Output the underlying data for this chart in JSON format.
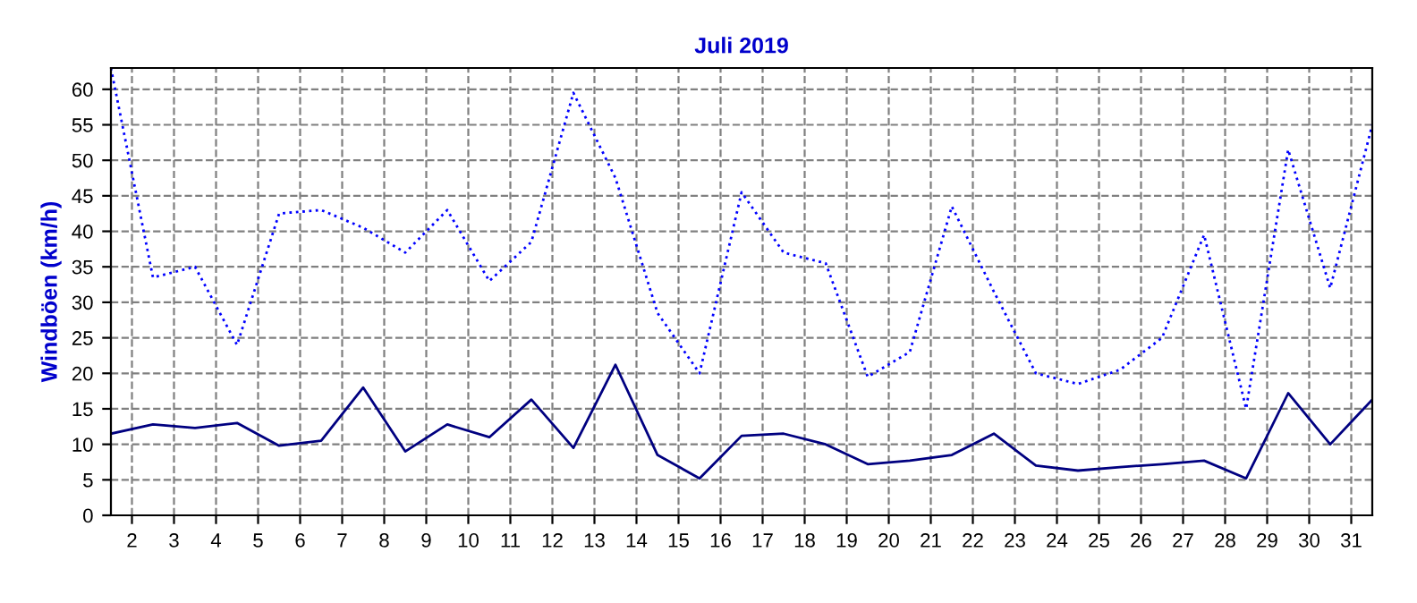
{
  "chart_data": {
    "type": "line",
    "title": "Juli 2019",
    "ylabel": "Windböen (km/h)",
    "x": [
      1.5,
      2.5,
      3.5,
      4.5,
      5.5,
      6.5,
      7.5,
      8.5,
      9.5,
      10.5,
      11.5,
      12.5,
      13.5,
      14.5,
      15.5,
      16.5,
      17.5,
      18.5,
      19.5,
      20.5,
      21.5,
      22.5,
      23.5,
      24.5,
      25.5,
      26.5,
      27.5,
      28.5,
      29.5,
      30.5,
      31.5
    ],
    "series": [
      {
        "color": "#0000ff",
        "line_style": "dotted",
        "values": [
          63,
          33.5,
          35,
          24,
          42.5,
          43,
          40.5,
          37,
          43,
          33,
          38.5,
          59.5,
          47.5,
          28.5,
          20,
          45.5,
          37,
          35.5,
          19.5,
          23,
          43.5,
          31.5,
          20,
          18.5,
          20.5,
          25,
          39.5,
          15,
          51.5,
          32,
          55
        ]
      },
      {
        "color": "#000080",
        "line_style": "solid",
        "values": [
          11.5,
          12.8,
          12.3,
          13,
          9.8,
          10.5,
          18,
          9,
          12.8,
          11,
          16.3,
          9.5,
          21.2,
          8.5,
          5.2,
          11.2,
          11.5,
          10,
          7.2,
          7.7,
          8.5,
          11.5,
          7,
          6.3,
          6.8,
          7.2,
          7.7,
          5.2,
          17.2,
          10,
          16.3
        ]
      }
    ],
    "xlim": [
      1.5,
      31.5
    ],
    "xticks": [
      2,
      3,
      4,
      5,
      6,
      7,
      8,
      9,
      10,
      11,
      12,
      13,
      14,
      15,
      16,
      17,
      18,
      19,
      20,
      21,
      22,
      23,
      24,
      25,
      26,
      27,
      28,
      29,
      30,
      31
    ],
    "ylim": [
      0,
      63
    ],
    "yticks": [
      0,
      5,
      10,
      15,
      20,
      25,
      30,
      35,
      40,
      45,
      50,
      55,
      60
    ],
    "grid": true,
    "legend": false
  }
}
